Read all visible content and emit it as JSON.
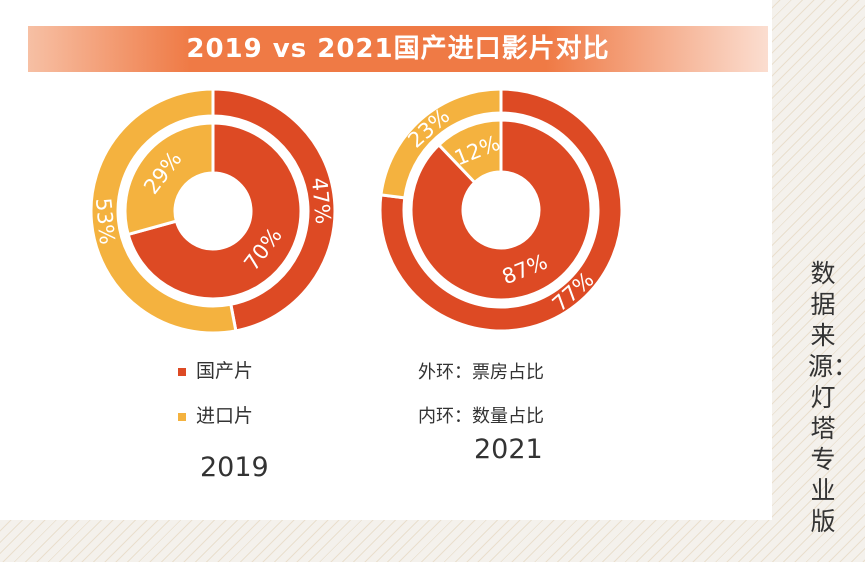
{
  "title": "2019 vs 2021国产进口影片对比",
  "colors": {
    "domestic": "#dd4a24",
    "imported": "#f4b23f",
    "title_bar": "#ef7a45"
  },
  "legend": [
    {
      "label": "国产片",
      "color": "#dd4a24"
    },
    {
      "label": "进口片",
      "color": "#f4b23f"
    }
  ],
  "ring_notes": {
    "outer": "外环：票房占比",
    "inner": "内环：数量占比"
  },
  "source": "数据来源：灯塔专业版",
  "chart_data": [
    {
      "type": "pie",
      "variant": "nested-donut",
      "title": "2019",
      "outer": {
        "measure": "票房占比",
        "categories": [
          "国产片",
          "进口片"
        ],
        "values": [
          47,
          53
        ],
        "labels": [
          "47%",
          "53%"
        ]
      },
      "inner": {
        "measure": "数量占比",
        "categories": [
          "国产片",
          "进口片"
        ],
        "values": [
          70,
          29
        ],
        "labels": [
          "70%",
          "29%"
        ]
      }
    },
    {
      "type": "pie",
      "variant": "nested-donut",
      "title": "2021",
      "outer": {
        "measure": "票房占比",
        "categories": [
          "国产片",
          "进口片"
        ],
        "values": [
          77,
          23
        ],
        "labels": [
          "77%",
          "23%"
        ]
      },
      "inner": {
        "measure": "数量占比",
        "categories": [
          "国产片",
          "进口片"
        ],
        "values": [
          87,
          12
        ],
        "labels": [
          "87%",
          "12%"
        ]
      }
    }
  ]
}
